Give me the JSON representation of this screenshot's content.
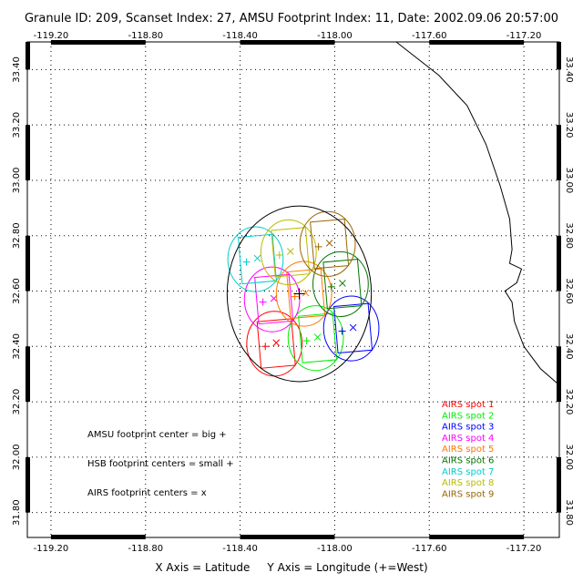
{
  "title": "Granule ID: 209, Scanset Index: 27, AMSU Footprint Index: 11, Date: 2002.09.06 20:57:00",
  "axis_caption": "X Axis = Latitude     Y Axis = Longitude (+=West)",
  "notes": [
    "AMSU footprint center = big +",
    "HSB footprint centers = small +",
    "AIRS footprint centers = x"
  ],
  "chart_data": {
    "type": "scatter",
    "x_ticks": [
      "-119.20",
      "-118.80",
      "-118.40",
      "-118.00",
      "-117.60",
      "-117.20"
    ],
    "x_tick_values": [
      -119.2,
      -118.8,
      -118.4,
      -118.0,
      -117.6,
      -117.2
    ],
    "y_ticks": [
      "33.40",
      "33.20",
      "33.00",
      "32.80",
      "32.60",
      "32.40",
      "32.20",
      "32.00",
      "31.80"
    ],
    "y_tick_values": [
      33.4,
      33.2,
      33.0,
      32.8,
      32.6,
      32.4,
      32.2,
      32.0,
      31.8
    ],
    "xlim": [
      -119.3,
      -117.05
    ],
    "ylim": [
      31.71,
      33.5
    ],
    "grid": true,
    "amsu": {
      "lon": -118.15,
      "lat": 32.59,
      "radius_deg": 0.305
    },
    "airs_spots": [
      {
        "label": "AIRS spot 1",
        "color": "#ff0000",
        "lon": -118.255,
        "lat": 32.41
      },
      {
        "label": "AIRS spot 2",
        "color": "#00ee00",
        "lon": -118.08,
        "lat": 32.43
      },
      {
        "label": "AIRS spot 3",
        "color": "#0000ff",
        "lon": -117.93,
        "lat": 32.465
      },
      {
        "label": "AIRS spot 4",
        "color": "#ff00ff",
        "lon": -118.265,
        "lat": 32.57
      },
      {
        "label": "AIRS spot 5",
        "color": "#ff7700",
        "lon": -118.13,
        "lat": 32.59
      },
      {
        "label": "AIRS spot 6",
        "color": "#007700",
        "lon": -117.975,
        "lat": 32.625
      },
      {
        "label": "AIRS spot 7",
        "color": "#00cccc",
        "lon": -118.335,
        "lat": 32.715
      },
      {
        "label": "AIRS spot 8",
        "color": "#bbbb00",
        "lon": -118.195,
        "lat": 32.74
      },
      {
        "label": "AIRS spot 9",
        "color": "#996600",
        "lon": -118.03,
        "lat": 32.77
      }
    ],
    "coastline": [
      [
        -117.74,
        33.5
      ],
      [
        -117.56,
        33.38
      ],
      [
        -117.44,
        33.27
      ],
      [
        -117.36,
        33.13
      ],
      [
        -117.3,
        32.98
      ],
      [
        -117.26,
        32.86
      ],
      [
        -117.25,
        32.75
      ],
      [
        -117.26,
        32.7
      ],
      [
        -117.21,
        32.68
      ],
      [
        -117.23,
        32.63
      ],
      [
        -117.28,
        32.6
      ],
      [
        -117.25,
        32.56
      ],
      [
        -117.24,
        32.49
      ],
      [
        -117.2,
        32.4
      ],
      [
        -117.13,
        32.32
      ],
      [
        -117.05,
        32.26
      ]
    ]
  }
}
